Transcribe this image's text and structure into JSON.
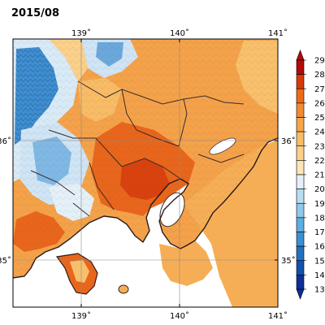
{
  "title": "2015/08",
  "axes": {
    "lon_ticks": [
      "139˚",
      "140˚",
      "141˚"
    ],
    "lat_ticks": [
      "36˚",
      "35˚"
    ]
  },
  "colorbar": {
    "labels": [
      "29",
      "28",
      "27",
      "26",
      "25",
      "24",
      "23",
      "22",
      "21",
      "20",
      "19",
      "18",
      "17",
      "16",
      "15",
      "14",
      "13"
    ],
    "colors": [
      "#b40a0a",
      "#d8380a",
      "#ee6a18",
      "#f38a30",
      "#f6a548",
      "#f8bc66",
      "#fad08a",
      "#fce6b8",
      "#e4f0f8",
      "#b8dcf0",
      "#8ec8ea",
      "#5eaedf",
      "#3a90d0",
      "#2270c0",
      "#1450ad",
      "#0e2f96"
    ],
    "extends": "both"
  },
  "colors": {
    "land_hot": "#e85e14",
    "land_warm": "#f09040",
    "land_mild": "#f5b060",
    "land_cool": "#f8d090",
    "mountain_cold": "#3a88cc",
    "sea": "#ffffff",
    "border": "#3a2a2a"
  }
}
